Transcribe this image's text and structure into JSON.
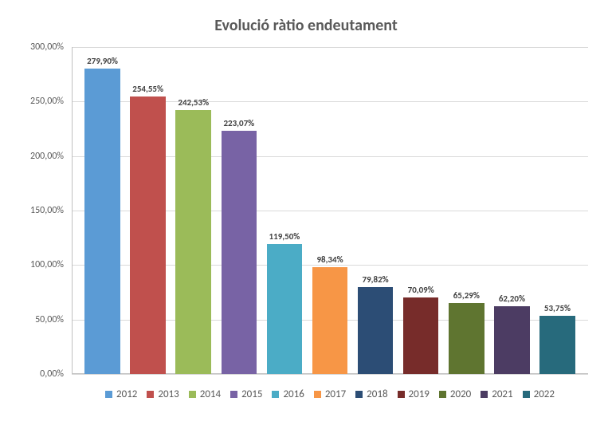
{
  "chart": {
    "type": "bar",
    "title": "Evolució ràtio endeutament",
    "title_fontsize": 20,
    "title_color": "#595959",
    "background_color": "#ffffff",
    "grid_color": "#d9d9d9",
    "axis_color": "#bfbfbf",
    "label_color": "#595959",
    "label_fontsize": 12,
    "data_label_fontsize": 11,
    "data_label_color": "#404040",
    "y": {
      "min": 0,
      "max": 300,
      "step": 50,
      "ticks": [
        "0,00%",
        "50,00%",
        "100,00%",
        "150,00%",
        "200,00%",
        "250,00%",
        "300,00%"
      ]
    },
    "categories": [
      "2012",
      "2013",
      "2014",
      "2015",
      "2016",
      "2017",
      "2018",
      "2019",
      "2020",
      "2021",
      "2022"
    ],
    "series": [
      {
        "year": "2012",
        "value": 279.9,
        "label": "279,90%",
        "color": "#5b9bd5"
      },
      {
        "year": "2013",
        "value": 254.55,
        "label": "254,55%",
        "color": "#c0504d"
      },
      {
        "year": "2014",
        "value": 242.53,
        "label": "242,53%",
        "color": "#9bbb59"
      },
      {
        "year": "2015",
        "value": 223.07,
        "label": "223,07%",
        "color": "#7863a5"
      },
      {
        "year": "2016",
        "value": 119.5,
        "label": "119,50%",
        "color": "#4bacc6"
      },
      {
        "year": "2017",
        "value": 98.34,
        "label": "98,34%",
        "color": "#f79646"
      },
      {
        "year": "2018",
        "value": 79.82,
        "label": "79,82%",
        "color": "#2c4d75"
      },
      {
        "year": "2019",
        "value": 70.09,
        "label": "70,09%",
        "color": "#772c2a"
      },
      {
        "year": "2020",
        "value": 65.29,
        "label": "65,29%",
        "color": "#5f7530"
      },
      {
        "year": "2021",
        "value": 62.2,
        "label": "62,20%",
        "color": "#4c3c63"
      },
      {
        "year": "2022",
        "value": 53.75,
        "label": "53,75%",
        "color": "#276a7c"
      }
    ],
    "bar_width_ratio": 0.78
  }
}
